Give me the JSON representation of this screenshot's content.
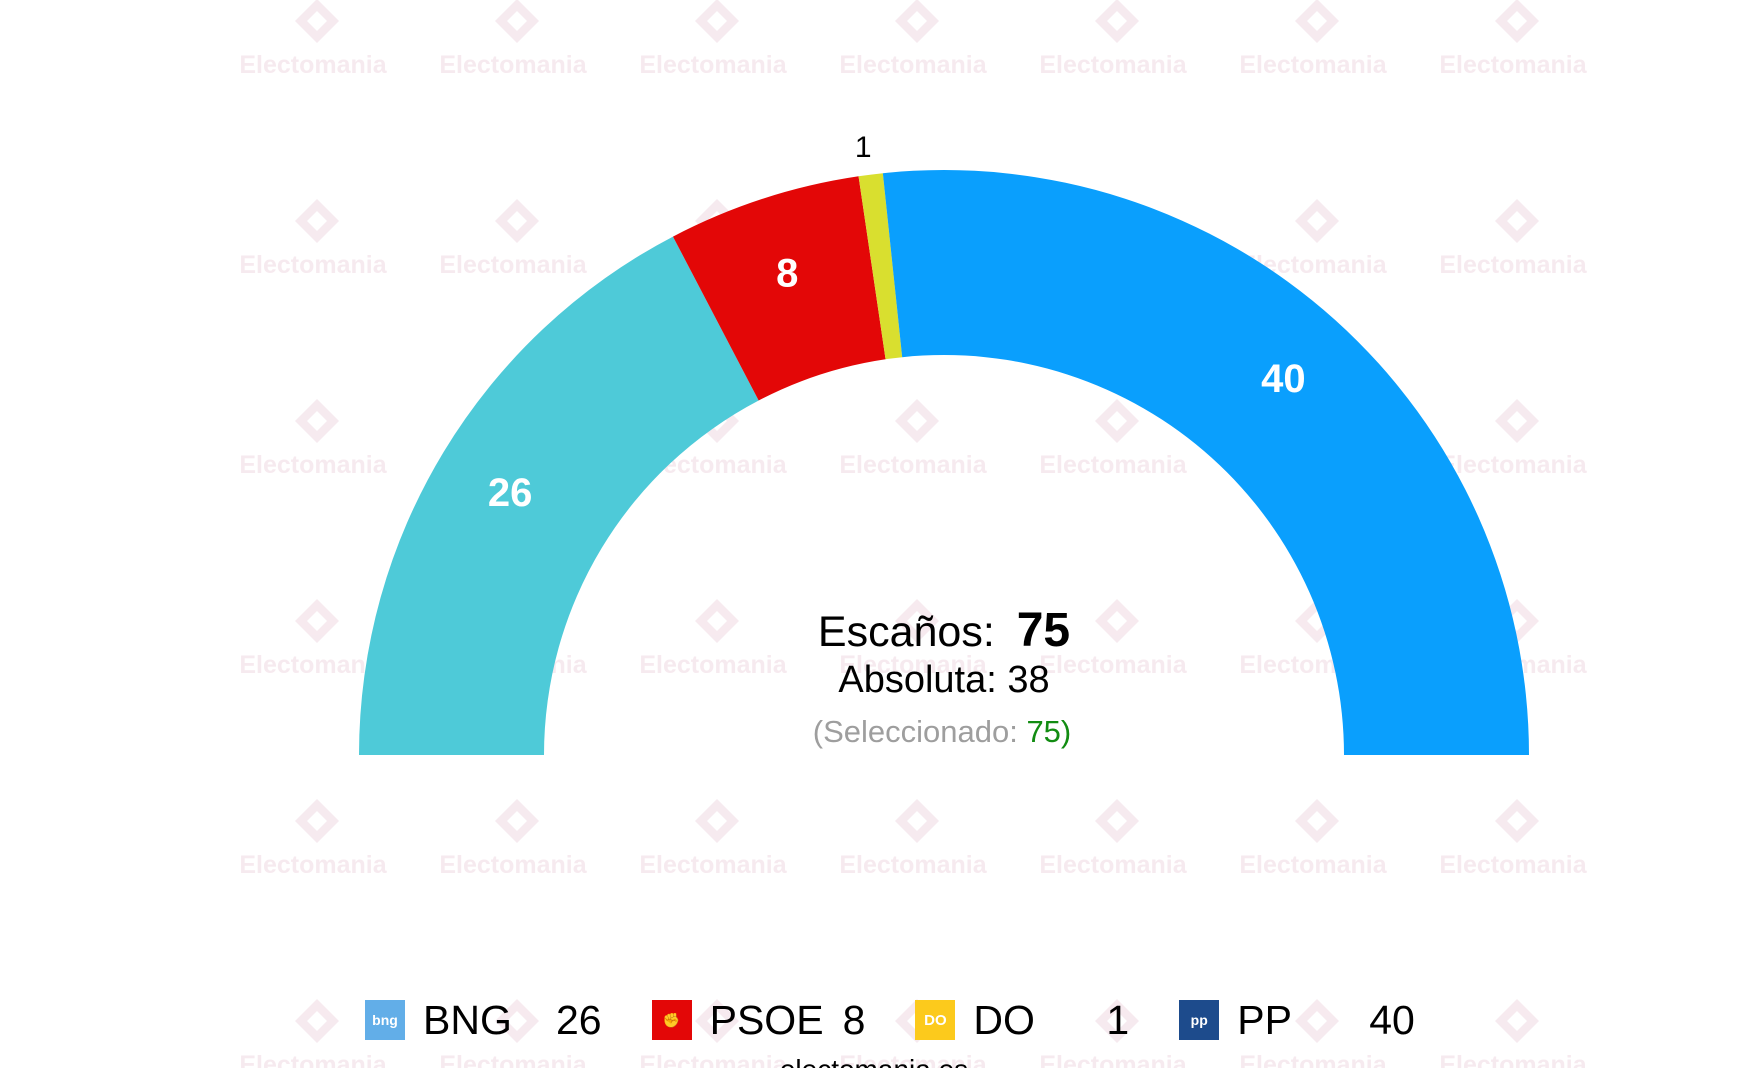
{
  "chart_data": {
    "type": "pie",
    "variant": "semicircle-parliament",
    "categories": [
      "BNG",
      "PSOE",
      "DO",
      "PP"
    ],
    "values": [
      26,
      8,
      1,
      40
    ],
    "colors": [
      "#4ecad8",
      "#e30707",
      "#d9df2f",
      "#0a9ffd"
    ],
    "total_label": "Escaños:",
    "total_value": "75",
    "majority_label": "Absoluta: 38",
    "selected_prefix": "(Seleccionado: ",
    "selected_value": "75",
    "selected_suffix": ")",
    "selected_color": "#128c12"
  },
  "legend": [
    {
      "name": "BNG",
      "seats": "26",
      "logo_text": "bng",
      "logo_color": "#62aee8",
      "logo_icon": "bng-logo-icon"
    },
    {
      "name": "PSOE",
      "seats": "8",
      "logo_text": "✊",
      "logo_color": "#e30707",
      "logo_icon": "psoe-logo-icon"
    },
    {
      "name": "DO",
      "seats": "1",
      "logo_text": "DO",
      "logo_color": "#fcca1c",
      "logo_icon": "do-logo-icon"
    },
    {
      "name": "PP",
      "seats": "40",
      "logo_text": "pp",
      "logo_color": "#1d4b8c",
      "logo_icon": "pp-logo-icon"
    }
  ],
  "watermark": {
    "text": "Electomania",
    "color": "#e8c4d2"
  },
  "footer": {
    "text": "electomania.es"
  }
}
